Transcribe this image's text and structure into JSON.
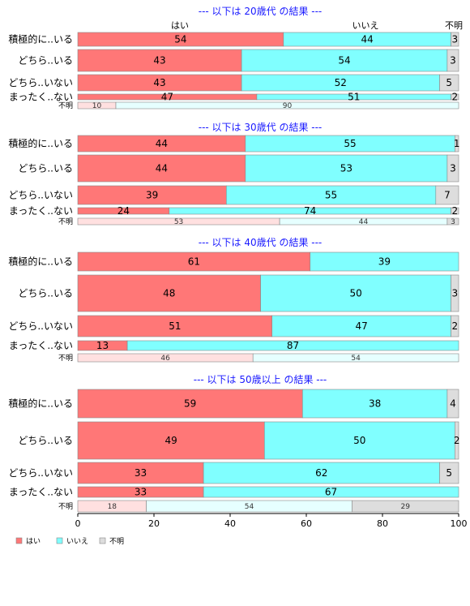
{
  "colors": {
    "yes": "#ff7777",
    "no": "#80ffff",
    "unknown": "#dddddd",
    "yes_light": "#ffe0e0",
    "no_light": "#e6ffff",
    "unknown_light": "#dddddd",
    "title": "#1a1aff"
  },
  "column_headers": [
    "はい",
    "いいえ",
    "不明"
  ],
  "legend": [
    "はい",
    "いいえ",
    "不明"
  ],
  "chart_data": {
    "type": "bar",
    "orientation": "horizontal-stacked-percent",
    "xlim": [
      0,
      100
    ],
    "xticks": [
      0,
      20,
      40,
      60,
      80,
      100
    ],
    "series_names": [
      "はい",
      "いいえ",
      "不明"
    ],
    "panels": [
      {
        "title": "--- 以下は 20歳代 の結果 ---",
        "rows": [
          {
            "label": "積極的に..いる",
            "values": [
              54,
              44,
              3
            ]
          },
          {
            "label": "どちら..いる",
            "values": [
              43,
              54,
              3
            ]
          },
          {
            "label": "どちら..いない",
            "values": [
              43,
              52,
              5
            ]
          },
          {
            "label": "まったく..ない",
            "values": [
              47,
              51,
              2
            ]
          },
          {
            "label": "不明",
            "values": [
              10,
              90,
              0
            ],
            "small": true
          }
        ]
      },
      {
        "title": "--- 以下は 30歳代 の結果 ---",
        "rows": [
          {
            "label": "積極的に..いる",
            "values": [
              44,
              55,
              1
            ]
          },
          {
            "label": "どちら..いる",
            "values": [
              44,
              53,
              3
            ]
          },
          {
            "label": "どちら..いない",
            "values": [
              39,
              55,
              7
            ]
          },
          {
            "label": "まったく..ない",
            "values": [
              24,
              74,
              2
            ]
          },
          {
            "label": "不明",
            "values": [
              53,
              44,
              3
            ],
            "small": true
          }
        ]
      },
      {
        "title": "--- 以下は 40歳代 の結果 ---",
        "rows": [
          {
            "label": "積極的に..いる",
            "values": [
              61,
              39,
              0.5
            ]
          },
          {
            "label": "どちら..いる",
            "values": [
              48,
              50,
              3
            ]
          },
          {
            "label": "どちら..いない",
            "values": [
              51,
              47,
              2
            ]
          },
          {
            "label": "まったく..ない",
            "values": [
              13,
              87,
              0
            ]
          },
          {
            "label": "不明",
            "values": [
              46,
              54,
              0
            ],
            "small": true
          }
        ]
      },
      {
        "title": "--- 以下は 50歳以上 の結果 ---",
        "rows": [
          {
            "label": "積極的に..いる",
            "values": [
              59,
              38,
              4
            ]
          },
          {
            "label": "どちら..いる",
            "values": [
              49,
              50,
              2
            ]
          },
          {
            "label": "どちら..いない",
            "values": [
              33,
              62,
              5
            ]
          },
          {
            "label": "まったく..ない",
            "values": [
              33,
              67,
              0
            ]
          },
          {
            "label": "不明",
            "values": [
              18,
              54,
              29
            ],
            "small": true
          }
        ]
      }
    ]
  }
}
